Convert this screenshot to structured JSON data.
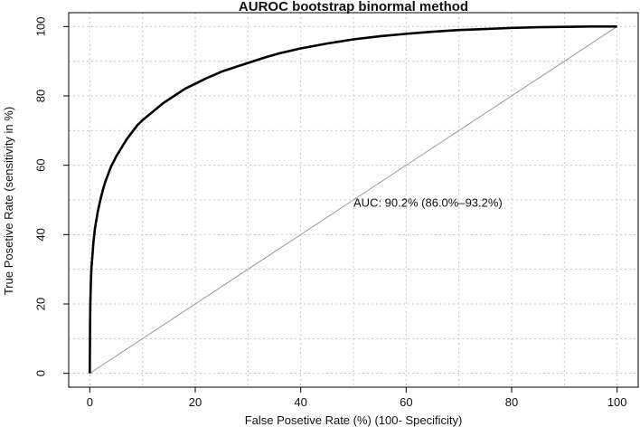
{
  "chart_data": {
    "type": "line",
    "title": "AUROC bootstrap binormal method",
    "xlabel": "False Posetive Rate (%) (100- Specificity)",
    "ylabel": "True Posetive Rate (sensitivity in %)",
    "xlim": [
      -4,
      104
    ],
    "ylim": [
      -4,
      104
    ],
    "xticks": [
      0,
      20,
      40,
      60,
      80,
      100
    ],
    "yticks": [
      0,
      20,
      40,
      60,
      80,
      100
    ],
    "grid": true,
    "grid_style": "dotted",
    "colors": {
      "curve": "#000000",
      "diagonal": "#9a9a9a",
      "grid": "#c8c8c8",
      "frame": "#000000"
    },
    "series": [
      {
        "role": "roc-curve",
        "x": [
          0,
          0.05,
          0.1,
          0.2,
          0.3,
          0.5,
          0.7,
          1,
          1.5,
          2,
          2.5,
          3,
          4,
          5,
          6,
          7,
          8,
          9,
          10,
          12,
          14,
          16,
          18,
          20,
          22,
          25,
          28,
          30,
          33,
          36,
          40,
          45,
          50,
          55,
          60,
          65,
          70,
          75,
          80,
          85,
          90,
          95,
          100
        ],
        "y": [
          0,
          14,
          20,
          26,
          30,
          34,
          38,
          42,
          46.5,
          50,
          53,
          55.5,
          59.5,
          62.5,
          65,
          67.5,
          69.5,
          71.5,
          73,
          75.5,
          78,
          80,
          82,
          83.5,
          85,
          87,
          88.5,
          89.5,
          91,
          92.3,
          93.7,
          95.1,
          96.3,
          97.2,
          97.9,
          98.5,
          99,
          99.3,
          99.6,
          99.8,
          99.9,
          100,
          100
        ]
      },
      {
        "role": "reference-diagonal",
        "x": [
          0,
          100
        ],
        "y": [
          0,
          100
        ]
      }
    ],
    "annotations": [
      {
        "text": "AUC: 90.2% (86.0%–93.2%)",
        "x": 50,
        "y": 48
      }
    ]
  }
}
